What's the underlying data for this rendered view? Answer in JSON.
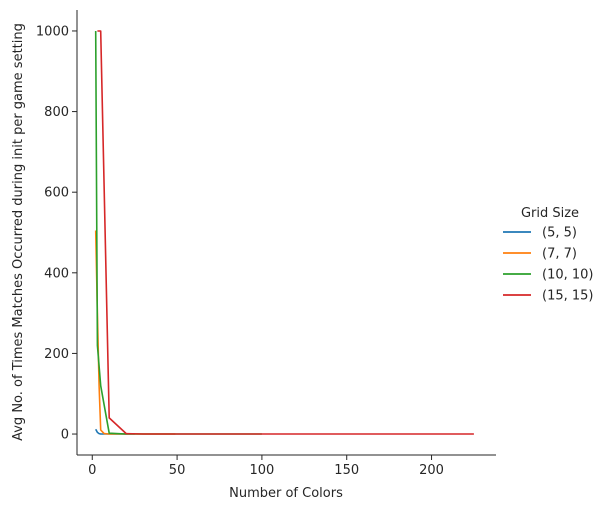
{
  "chart_data": {
    "type": "line",
    "xlabel": "Number of Colors",
    "ylabel": "Avg No. of Times Matches Occurred during init per game setting",
    "xlim": [
      -9,
      238
    ],
    "ylim": [
      -52,
      1052
    ],
    "xticks": [
      0,
      50,
      100,
      150,
      200
    ],
    "yticks": [
      0,
      200,
      400,
      600,
      800,
      1000
    ],
    "grid": false,
    "legend": {
      "title": "Grid Size",
      "placement": "right"
    },
    "series": [
      {
        "name": "(5, 5)",
        "color": "#1f77b4",
        "x": [
          2,
          3,
          4,
          5,
          10,
          25
        ],
        "y": [
          12,
          4,
          1,
          0,
          0,
          0
        ]
      },
      {
        "name": "(7, 7)",
        "color": "#ff7f0e",
        "x": [
          2,
          3,
          4,
          5,
          7,
          10,
          20,
          49
        ],
        "y": [
          505,
          300,
          120,
          10,
          1,
          0,
          0,
          0
        ]
      },
      {
        "name": "(10, 10)",
        "color": "#2ca02c",
        "x": [
          2,
          3,
          5,
          10,
          20,
          50,
          100
        ],
        "y": [
          1000,
          220,
          120,
          2,
          0,
          0,
          0
        ]
      },
      {
        "name": "(15, 15)",
        "color": "#d62728",
        "x": [
          3,
          5,
          10,
          20,
          30,
          50,
          75,
          100,
          150,
          200,
          225
        ],
        "y": [
          1000,
          1000,
          40,
          1,
          0,
          0,
          0,
          0,
          0,
          0,
          0
        ]
      }
    ]
  }
}
